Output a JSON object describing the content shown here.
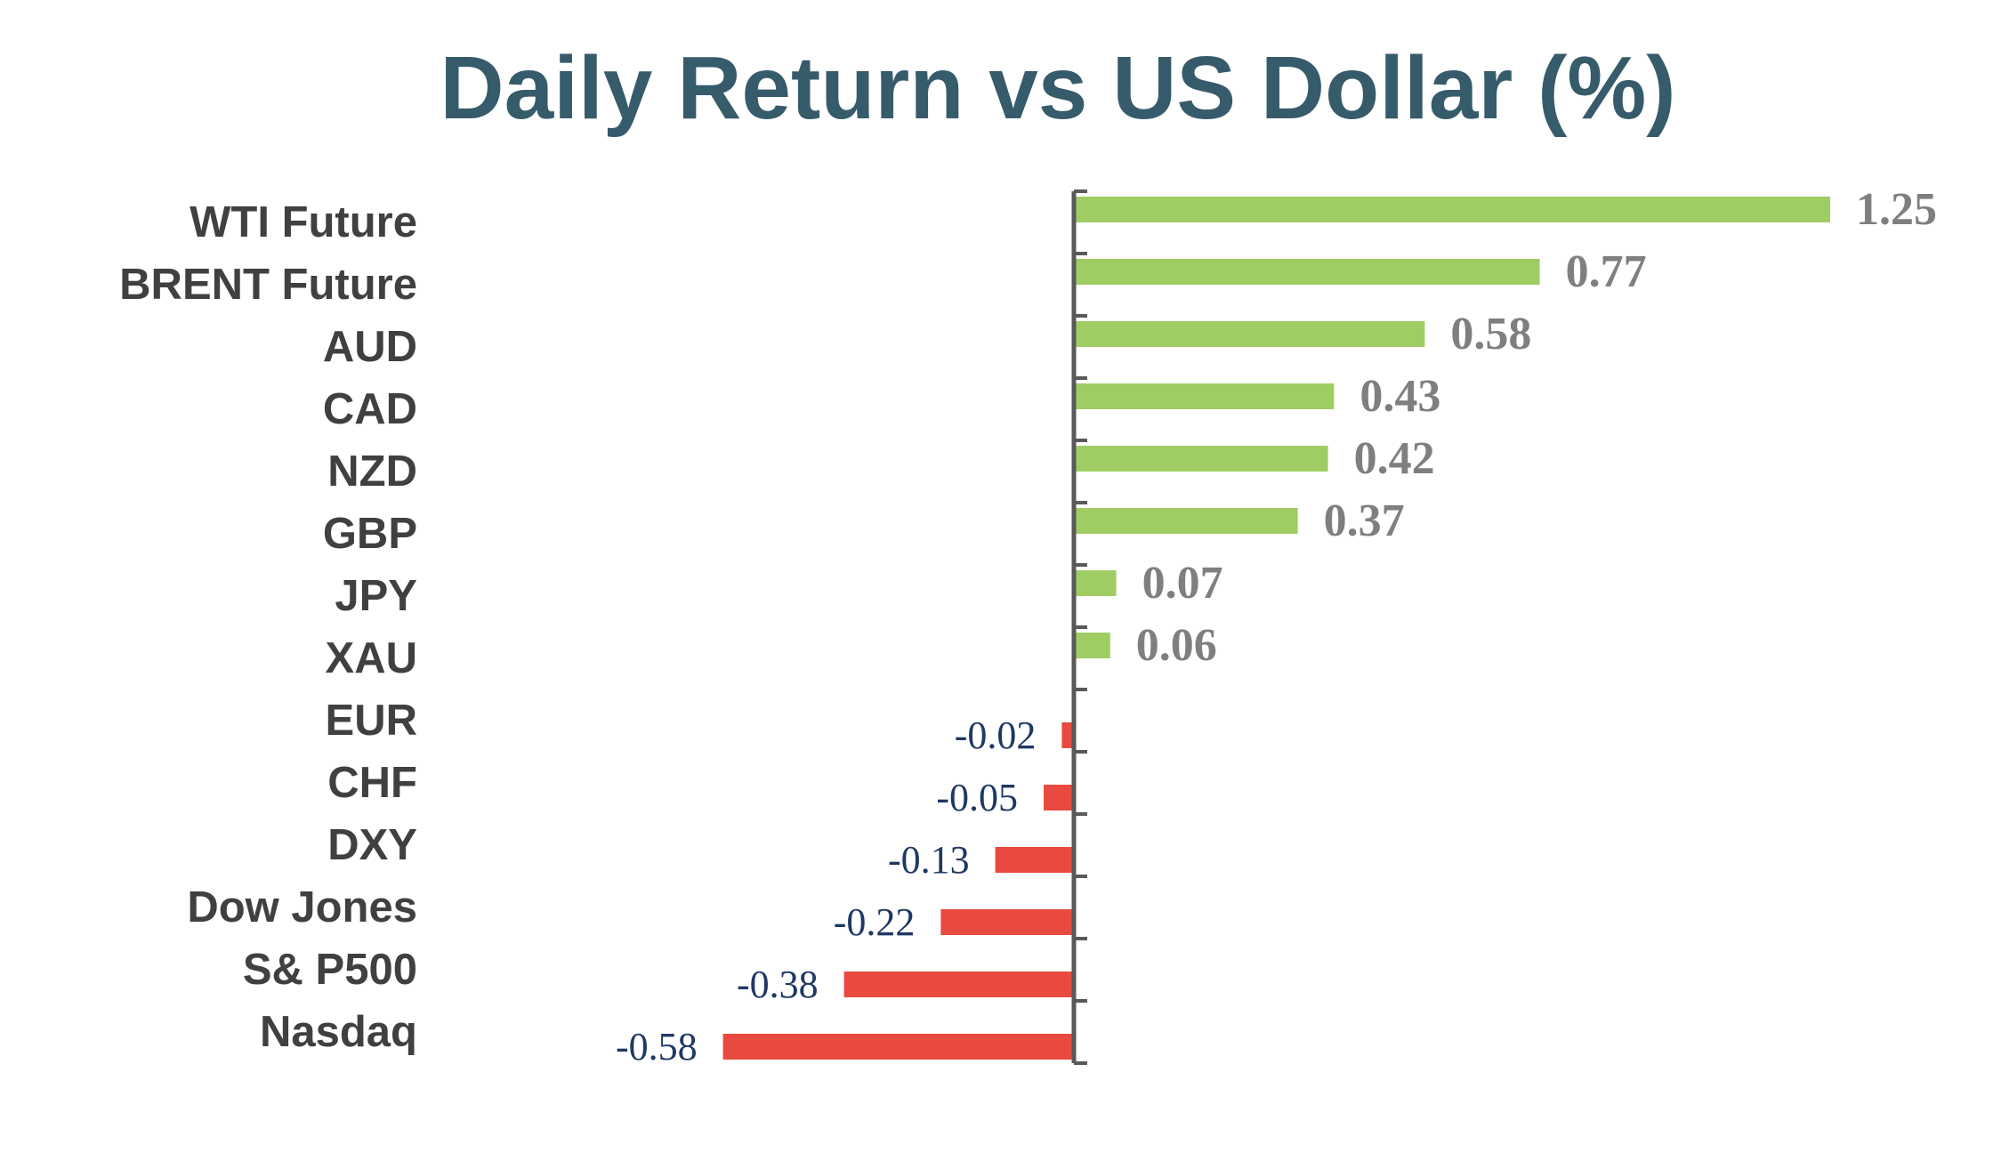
{
  "chart_data": {
    "type": "bar",
    "orientation": "horizontal",
    "title": "Daily Return vs US Dollar (%)",
    "categories": [
      "WTI Future",
      "BRENT Future",
      "AUD",
      "CAD",
      "NZD",
      "GBP",
      "JPY",
      "XAU",
      "EUR",
      "CHF",
      "DXY",
      "Dow Jones",
      "S& P500",
      "Nasdaq"
    ],
    "values": [
      1.25,
      0.77,
      0.58,
      0.43,
      0.42,
      0.37,
      0.07,
      0.06,
      -0.02,
      -0.05,
      -0.13,
      -0.22,
      -0.38,
      -0.58
    ],
    "xlim": [
      -0.6,
      1.3
    ],
    "grid": false,
    "legend": "none",
    "colors": {
      "title": "#365b6b",
      "positive_bar": "#9fcd63",
      "negative_bar": "#e84a3f",
      "positive_label": "#7f7f7f",
      "negative_label": "#1f3864",
      "category_label": "#404040",
      "axis": "#595959"
    }
  }
}
